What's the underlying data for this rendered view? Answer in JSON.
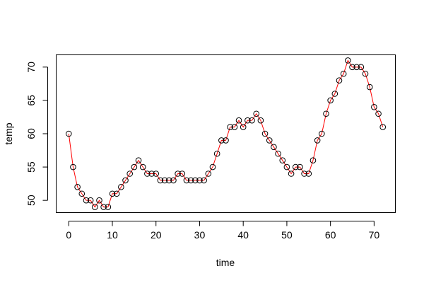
{
  "chart_data": {
    "type": "line",
    "title": "",
    "xlabel": "time",
    "ylabel": "temp",
    "xlim": [
      -2.88,
      74.88
    ],
    "ylim": [
      48.16,
      71.84
    ],
    "x_ticks": [
      0,
      10,
      20,
      30,
      40,
      50,
      60,
      70
    ],
    "y_ticks": [
      50,
      55,
      60,
      65,
      70
    ],
    "grid": false,
    "legend": "none",
    "line_color": "#ff0000",
    "point_style": "open-circle",
    "point_color": "#000000",
    "series": [
      {
        "x": [
          0,
          1,
          2,
          3,
          4,
          5,
          6,
          7,
          8,
          9,
          10,
          11,
          12,
          13,
          14,
          15,
          16,
          17,
          18,
          19,
          20,
          21,
          22,
          23,
          24,
          25,
          26,
          27,
          28,
          29,
          30,
          31,
          32,
          33,
          34,
          35,
          36,
          37,
          38,
          39,
          40,
          41,
          42,
          43,
          44,
          45,
          46,
          47,
          48,
          49,
          50,
          51,
          52,
          53,
          54,
          55,
          56,
          57,
          58,
          59,
          60,
          61,
          62,
          63,
          64,
          65,
          66,
          67,
          68,
          69,
          70,
          71,
          72
        ],
        "values": [
          60,
          55,
          52,
          51,
          50,
          50,
          49,
          50,
          49,
          49,
          51,
          51,
          52,
          53,
          54,
          55,
          56,
          55,
          54,
          54,
          54,
          53,
          53,
          53,
          53,
          54,
          54,
          53,
          53,
          53,
          53,
          53,
          54,
          55,
          57,
          59,
          59,
          61,
          61,
          62,
          61,
          62,
          62,
          63,
          62,
          60,
          59,
          58,
          57,
          56,
          55,
          54,
          55,
          55,
          54,
          54,
          56,
          59,
          60,
          63,
          65,
          66,
          68,
          69,
          71,
          70,
          70,
          70,
          69,
          67,
          64,
          63,
          61
        ]
      }
    ]
  }
}
